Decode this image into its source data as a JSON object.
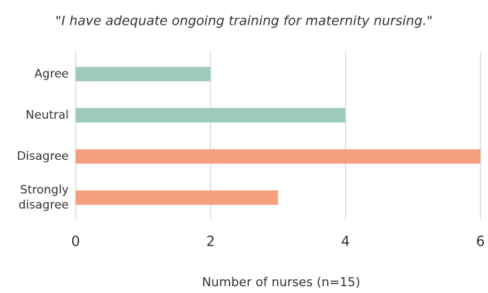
{
  "chart_data": {
    "type": "barh",
    "title": "\"I have adequate ongoing training for maternity nursing.\"",
    "categories": [
      "Agree",
      "Neutral",
      "Disagree",
      "Strongly disagree"
    ],
    "values": [
      2,
      4,
      6,
      3
    ],
    "colors": [
      "#9ccbb9",
      "#9ccbb9",
      "#f4a07f",
      "#f4a07f"
    ],
    "xlabel": "Number of nurses (n=15)",
    "xlim": [
      0,
      6
    ],
    "xticks": [
      0,
      2,
      4,
      6
    ],
    "grid": true
  }
}
